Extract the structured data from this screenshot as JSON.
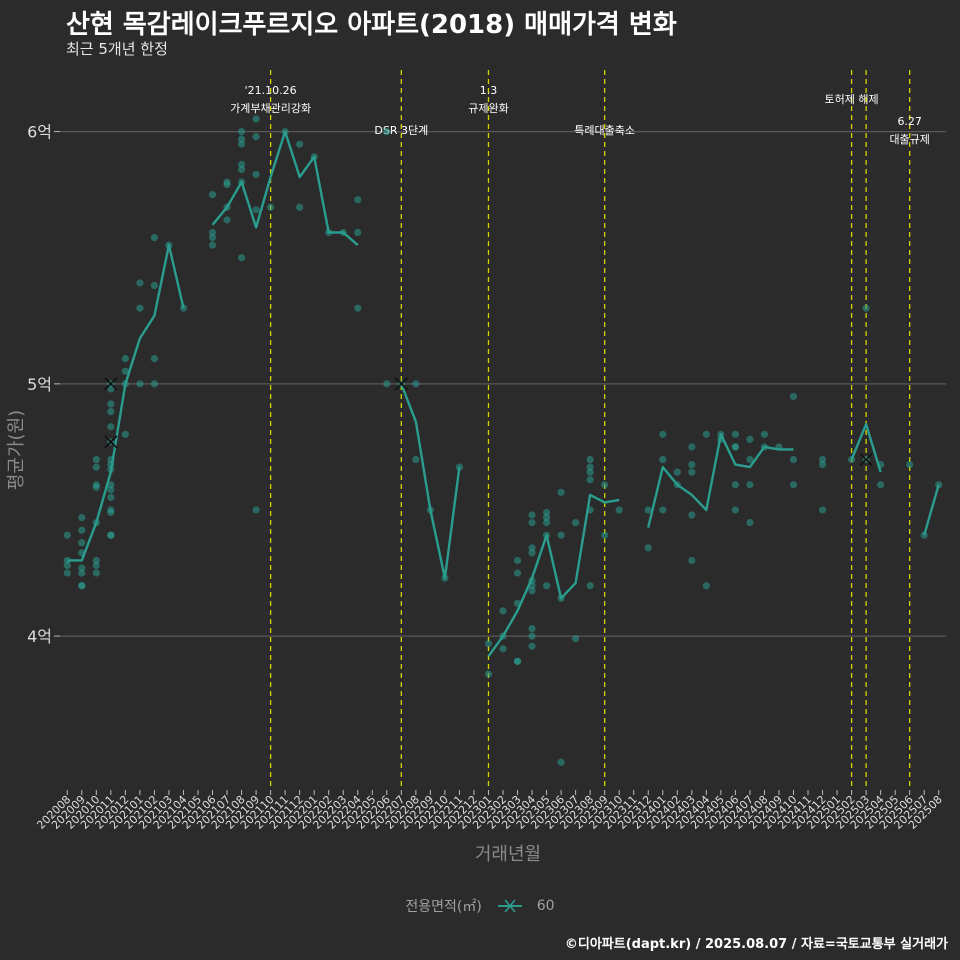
{
  "header": {
    "title": "산현 목감레이크푸르지오 아파트(2018) 매매가격 변화",
    "subtitle": "최근 5개년 한정"
  },
  "caption": "©디아파트(dapt.kr) / 2025.08.07 / 자료=국토교통부 실거래가",
  "legend": {
    "title": "전용면적(㎡)",
    "item": "60"
  },
  "colors": {
    "background": "#2b2b2b",
    "series": "#2a9d8f",
    "event_line": "#d4d400",
    "grid": "#5a5a5a"
  },
  "chart_data": {
    "type": "line",
    "title": "산현 목감레이크푸르지오 아파트(2018) 매매가격 변화",
    "subtitle": "최근 5개년 한정",
    "xlabel": "거래년월",
    "ylabel": "평균가(원)",
    "grid": true,
    "legend_position": "bottom",
    "categories": [
      "202008",
      "202009",
      "202010",
      "202011",
      "202012",
      "202101",
      "202102",
      "202103",
      "202104",
      "202105",
      "202106",
      "202107",
      "202108",
      "202109",
      "202110",
      "202111",
      "202112",
      "202201",
      "202202",
      "202203",
      "202204",
      "202205",
      "202206",
      "202207",
      "202208",
      "202209",
      "202210",
      "202211",
      "202212",
      "202301",
      "202302",
      "202303",
      "202304",
      "202305",
      "202306",
      "202307",
      "202308",
      "202309",
      "202310",
      "202311",
      "202312",
      "202401",
      "202402",
      "202403",
      "202404",
      "202405",
      "202406",
      "202407",
      "202408",
      "202409",
      "202410",
      "202411",
      "202412",
      "202501",
      "202502",
      "202503",
      "202504",
      "202505",
      "202506",
      "202507",
      "202508"
    ],
    "y_ticks": [
      {
        "value": 40000,
        "label": "4억"
      },
      {
        "value": 50000,
        "label": "5억"
      },
      {
        "value": 60000,
        "label": "6억"
      }
    ],
    "ylim": [
      33900,
      62600
    ],
    "series": [
      {
        "name": "60",
        "unit": "만원",
        "values": [
          43000,
          43000,
          44500,
          46500,
          50000,
          51800,
          52700,
          55500,
          53000,
          null,
          56300,
          57000,
          58000,
          56200,
          58200,
          60000,
          58200,
          59000,
          56000,
          56000,
          55500,
          null,
          null,
          50000,
          48500,
          45000,
          42300,
          46700,
          null,
          39200,
          40000,
          41000,
          42300,
          44000,
          41500,
          42100,
          45600,
          45300,
          45400,
          null,
          44300,
          46700,
          46000,
          45600,
          45000,
          48000,
          46800,
          46700,
          47500,
          47400,
          47400,
          null,
          null,
          null,
          47000,
          48400,
          46500,
          null,
          null,
          44000,
          46000
        ]
      }
    ],
    "points": [
      {
        "x": "202008",
        "y": 44000
      },
      {
        "x": "202008",
        "y": 43000
      },
      {
        "x": "202008",
        "y": 42800
      },
      {
        "x": "202008",
        "y": 42500
      },
      {
        "x": "202009",
        "y": 44700
      },
      {
        "x": "202009",
        "y": 44200
      },
      {
        "x": "202009",
        "y": 43700
      },
      {
        "x": "202009",
        "y": 43300
      },
      {
        "x": "202009",
        "y": 42700
      },
      {
        "x": "202009",
        "y": 42500
      },
      {
        "x": "202009",
        "y": 42000
      },
      {
        "x": "202009",
        "y": 42000
      },
      {
        "x": "202010",
        "y": 47000
      },
      {
        "x": "202010",
        "y": 46700
      },
      {
        "x": "202010",
        "y": 46000
      },
      {
        "x": "202010",
        "y": 45900
      },
      {
        "x": "202010",
        "y": 44500
      },
      {
        "x": "202010",
        "y": 43000
      },
      {
        "x": "202010",
        "y": 42800
      },
      {
        "x": "202010",
        "y": 42500
      },
      {
        "x": "202011",
        "y": 50000
      },
      {
        "x": "202011",
        "y": 49800
      },
      {
        "x": "202011",
        "y": 49200
      },
      {
        "x": "202011",
        "y": 48900
      },
      {
        "x": "202011",
        "y": 48300
      },
      {
        "x": "202011",
        "y": 47700
      },
      {
        "x": "202011",
        "y": 47000
      },
      {
        "x": "202011",
        "y": 46800
      },
      {
        "x": "202011",
        "y": 46600
      },
      {
        "x": "202011",
        "y": 46000
      },
      {
        "x": "202011",
        "y": 45800
      },
      {
        "x": "202011",
        "y": 45500
      },
      {
        "x": "202011",
        "y": 45000
      },
      {
        "x": "202011",
        "y": 44900
      },
      {
        "x": "202011",
        "y": 44000
      },
      {
        "x": "202011",
        "y": 44000
      },
      {
        "x": "202012",
        "y": 51000
      },
      {
        "x": "202012",
        "y": 50500
      },
      {
        "x": "202012",
        "y": 50000
      },
      {
        "x": "202012",
        "y": 48000
      },
      {
        "x": "202101",
        "y": 54000
      },
      {
        "x": "202101",
        "y": 53000
      },
      {
        "x": "202101",
        "y": 50000
      },
      {
        "x": "202102",
        "y": 55800
      },
      {
        "x": "202102",
        "y": 53900
      },
      {
        "x": "202102",
        "y": 51000
      },
      {
        "x": "202102",
        "y": 50000
      },
      {
        "x": "202103",
        "y": 55500
      },
      {
        "x": "202104",
        "y": 53000
      },
      {
        "x": "202106",
        "y": 57500
      },
      {
        "x": "202106",
        "y": 56000
      },
      {
        "x": "202106",
        "y": 55800
      },
      {
        "x": "202106",
        "y": 55500
      },
      {
        "x": "202107",
        "y": 58000
      },
      {
        "x": "202107",
        "y": 57900
      },
      {
        "x": "202107",
        "y": 57000
      },
      {
        "x": "202107",
        "y": 56500
      },
      {
        "x": "202108",
        "y": 60000
      },
      {
        "x": "202108",
        "y": 59700
      },
      {
        "x": "202108",
        "y": 59500
      },
      {
        "x": "202108",
        "y": 58700
      },
      {
        "x": "202108",
        "y": 58500
      },
      {
        "x": "202108",
        "y": 58000
      },
      {
        "x": "202108",
        "y": 55000
      },
      {
        "x": "202109",
        "y": 60500
      },
      {
        "x": "202109",
        "y": 59800
      },
      {
        "x": "202109",
        "y": 58300
      },
      {
        "x": "202109",
        "y": 56900
      },
      {
        "x": "202109",
        "y": 45000
      },
      {
        "x": "202110",
        "y": 57000
      },
      {
        "x": "202111",
        "y": 60000
      },
      {
        "x": "202112",
        "y": 59500
      },
      {
        "x": "202112",
        "y": 57000
      },
      {
        "x": "202201",
        "y": 59000
      },
      {
        "x": "202202",
        "y": 56000
      },
      {
        "x": "202203",
        "y": 56000
      },
      {
        "x": "202204",
        "y": 57300
      },
      {
        "x": "202204",
        "y": 56000
      },
      {
        "x": "202204",
        "y": 53000
      },
      {
        "x": "202206",
        "y": 60000
      },
      {
        "x": "202206",
        "y": 50000
      },
      {
        "x": "202207",
        "y": 50000
      },
      {
        "x": "202208",
        "y": 50000
      },
      {
        "x": "202208",
        "y": 47000
      },
      {
        "x": "202209",
        "y": 45000
      },
      {
        "x": "202210",
        "y": 42300
      },
      {
        "x": "202211",
        "y": 46700
      },
      {
        "x": "202301",
        "y": 39700
      },
      {
        "x": "202301",
        "y": 38500
      },
      {
        "x": "202302",
        "y": 41000
      },
      {
        "x": "202302",
        "y": 40000
      },
      {
        "x": "202302",
        "y": 39500
      },
      {
        "x": "202303",
        "y": 43000
      },
      {
        "x": "202303",
        "y": 42500
      },
      {
        "x": "202303",
        "y": 41300
      },
      {
        "x": "202303",
        "y": 39000
      },
      {
        "x": "202303",
        "y": 39000
      },
      {
        "x": "202304",
        "y": 44800
      },
      {
        "x": "202304",
        "y": 44500
      },
      {
        "x": "202304",
        "y": 43500
      },
      {
        "x": "202304",
        "y": 43300
      },
      {
        "x": "202304",
        "y": 42200
      },
      {
        "x": "202304",
        "y": 42000
      },
      {
        "x": "202304",
        "y": 41800
      },
      {
        "x": "202304",
        "y": 40300
      },
      {
        "x": "202304",
        "y": 40000
      },
      {
        "x": "202304",
        "y": 39600
      },
      {
        "x": "202305",
        "y": 44900
      },
      {
        "x": "202305",
        "y": 44700
      },
      {
        "x": "202305",
        "y": 44500
      },
      {
        "x": "202305",
        "y": 44000
      },
      {
        "x": "202305",
        "y": 42000
      },
      {
        "x": "202306",
        "y": 45700
      },
      {
        "x": "202306",
        "y": 44000
      },
      {
        "x": "202306",
        "y": 41500
      },
      {
        "x": "202306",
        "y": 35000
      },
      {
        "x": "202307",
        "y": 44500
      },
      {
        "x": "202307",
        "y": 39900
      },
      {
        "x": "202308",
        "y": 47000
      },
      {
        "x": "202308",
        "y": 46700
      },
      {
        "x": "202308",
        "y": 46500
      },
      {
        "x": "202308",
        "y": 46200
      },
      {
        "x": "202308",
        "y": 45000
      },
      {
        "x": "202308",
        "y": 42000
      },
      {
        "x": "202309",
        "y": 46000
      },
      {
        "x": "202309",
        "y": 44000
      },
      {
        "x": "202310",
        "y": 45000
      },
      {
        "x": "202312",
        "y": 45000
      },
      {
        "x": "202312",
        "y": 43500
      },
      {
        "x": "202401",
        "y": 48000
      },
      {
        "x": "202401",
        "y": 47000
      },
      {
        "x": "202401",
        "y": 45000
      },
      {
        "x": "202402",
        "y": 46500
      },
      {
        "x": "202402",
        "y": 46000
      },
      {
        "x": "202403",
        "y": 47500
      },
      {
        "x": "202403",
        "y": 46800
      },
      {
        "x": "202403",
        "y": 46500
      },
      {
        "x": "202403",
        "y": 44800
      },
      {
        "x": "202403",
        "y": 43000
      },
      {
        "x": "202404",
        "y": 48000
      },
      {
        "x": "202404",
        "y": 42000
      },
      {
        "x": "202405",
        "y": 48000
      },
      {
        "x": "202405",
        "y": 47800
      },
      {
        "x": "202406",
        "y": 48000
      },
      {
        "x": "202406",
        "y": 47500
      },
      {
        "x": "202406",
        "y": 47500
      },
      {
        "x": "202406",
        "y": 46000
      },
      {
        "x": "202406",
        "y": 45000
      },
      {
        "x": "202407",
        "y": 47800
      },
      {
        "x": "202407",
        "y": 47000
      },
      {
        "x": "202407",
        "y": 46000
      },
      {
        "x": "202407",
        "y": 44500
      },
      {
        "x": "202408",
        "y": 48000
      },
      {
        "x": "202408",
        "y": 47500
      },
      {
        "x": "202409",
        "y": 47500
      },
      {
        "x": "202410",
        "y": 49500
      },
      {
        "x": "202410",
        "y": 47000
      },
      {
        "x": "202410",
        "y": 46000
      },
      {
        "x": "202412",
        "y": 47000
      },
      {
        "x": "202412",
        "y": 46800
      },
      {
        "x": "202412",
        "y": 45000
      },
      {
        "x": "202502",
        "y": 47000
      },
      {
        "x": "202503",
        "y": 53000
      },
      {
        "x": "202503",
        "y": 47000
      },
      {
        "x": "202504",
        "y": 46800
      },
      {
        "x": "202504",
        "y": 46000
      },
      {
        "x": "202506",
        "y": 46800
      },
      {
        "x": "202507",
        "y": 44000
      },
      {
        "x": "202508",
        "y": 46000
      }
    ],
    "cross_markers": [
      {
        "x": "202011",
        "y": 50000
      },
      {
        "x": "202011",
        "y": 47700
      },
      {
        "x": "202207",
        "y": 50000
      },
      {
        "x": "202503",
        "y": 47000
      }
    ],
    "events": [
      {
        "x": 14.0,
        "lines": [
          "'21.10.26",
          "가계부채관리강화"
        ],
        "row": 0
      },
      {
        "x": 23.0,
        "lines": [
          "DSR 3단계"
        ],
        "row": 2
      },
      {
        "x": 29.0,
        "lines": [
          "1.3",
          "규제완화"
        ],
        "row": 0
      },
      {
        "x": 37.0,
        "lines": [
          "특례대출축소"
        ],
        "row": 2
      },
      {
        "x": 54.0,
        "lines": [
          "토허제 해제"
        ],
        "row": 1
      },
      {
        "x": 55.0,
        "lines": [],
        "row": 1
      },
      {
        "x": 58.0,
        "lines": [
          "6.27",
          "대출규제"
        ],
        "row": 3
      }
    ]
  }
}
